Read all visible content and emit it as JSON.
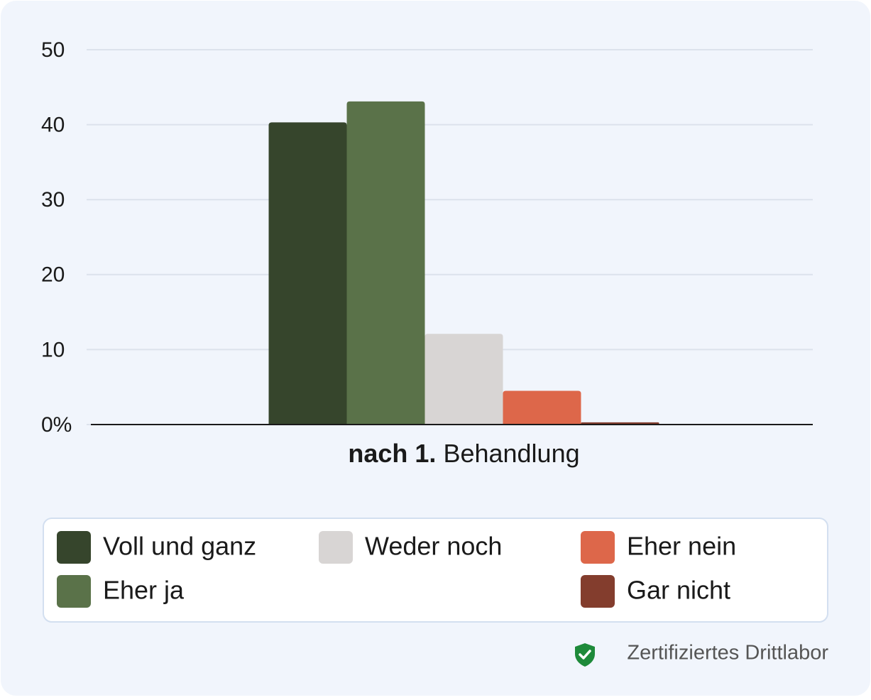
{
  "chart_data": {
    "type": "bar",
    "categories": [
      [
        "nach 1.",
        "Behandlung"
      ]
    ],
    "series": [
      {
        "name": "Voll und ganz",
        "color": "#36452c",
        "values": [
          40.3
        ]
      },
      {
        "name": "Eher ja",
        "color": "#5a7249",
        "values": [
          43.1
        ]
      },
      {
        "name": "Weder noch",
        "color": "#d8d5d4",
        "values": [
          12.1
        ]
      },
      {
        "name": "Eher nein",
        "color": "#dd674a",
        "values": [
          4.5
        ]
      },
      {
        "name": "Gar nicht",
        "color": "#833d2d",
        "values": [
          0.3
        ]
      }
    ],
    "ylim": [
      0,
      50
    ],
    "yticks": [
      {
        "value": 0,
        "label": "0%"
      },
      10,
      20,
      30,
      40,
      50
    ],
    "grid": true,
    "legend": "bottom",
    "footer": "Zertifiziertes Drittlabor"
  }
}
